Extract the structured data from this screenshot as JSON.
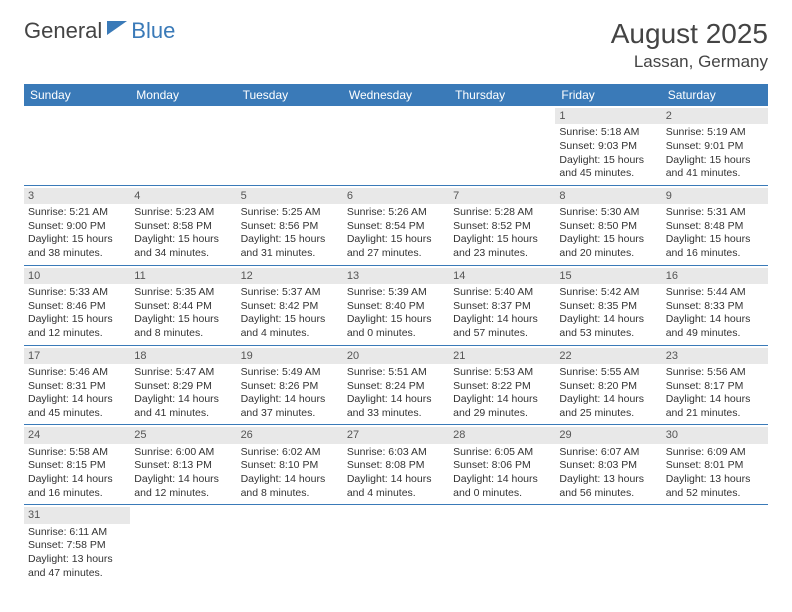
{
  "logo": {
    "part1": "General",
    "part2": "Blue"
  },
  "title": "August 2025",
  "location": "Lassan, Germany",
  "colors": {
    "header_bg": "#3a7ab8",
    "header_text": "#ffffff",
    "daynum_bg": "#e8e8e8",
    "body_text": "#333333",
    "border": "#3a7ab8"
  },
  "day_names": [
    "Sunday",
    "Monday",
    "Tuesday",
    "Wednesday",
    "Thursday",
    "Friday",
    "Saturday"
  ],
  "weeks": [
    [
      null,
      null,
      null,
      null,
      null,
      {
        "n": "1",
        "sunrise": "5:18 AM",
        "sunset": "9:03 PM",
        "daylight": "15 hours and 45 minutes."
      },
      {
        "n": "2",
        "sunrise": "5:19 AM",
        "sunset": "9:01 PM",
        "daylight": "15 hours and 41 minutes."
      }
    ],
    [
      {
        "n": "3",
        "sunrise": "5:21 AM",
        "sunset": "9:00 PM",
        "daylight": "15 hours and 38 minutes."
      },
      {
        "n": "4",
        "sunrise": "5:23 AM",
        "sunset": "8:58 PM",
        "daylight": "15 hours and 34 minutes."
      },
      {
        "n": "5",
        "sunrise": "5:25 AM",
        "sunset": "8:56 PM",
        "daylight": "15 hours and 31 minutes."
      },
      {
        "n": "6",
        "sunrise": "5:26 AM",
        "sunset": "8:54 PM",
        "daylight": "15 hours and 27 minutes."
      },
      {
        "n": "7",
        "sunrise": "5:28 AM",
        "sunset": "8:52 PM",
        "daylight": "15 hours and 23 minutes."
      },
      {
        "n": "8",
        "sunrise": "5:30 AM",
        "sunset": "8:50 PM",
        "daylight": "15 hours and 20 minutes."
      },
      {
        "n": "9",
        "sunrise": "5:31 AM",
        "sunset": "8:48 PM",
        "daylight": "15 hours and 16 minutes."
      }
    ],
    [
      {
        "n": "10",
        "sunrise": "5:33 AM",
        "sunset": "8:46 PM",
        "daylight": "15 hours and 12 minutes."
      },
      {
        "n": "11",
        "sunrise": "5:35 AM",
        "sunset": "8:44 PM",
        "daylight": "15 hours and 8 minutes."
      },
      {
        "n": "12",
        "sunrise": "5:37 AM",
        "sunset": "8:42 PM",
        "daylight": "15 hours and 4 minutes."
      },
      {
        "n": "13",
        "sunrise": "5:39 AM",
        "sunset": "8:40 PM",
        "daylight": "15 hours and 0 minutes."
      },
      {
        "n": "14",
        "sunrise": "5:40 AM",
        "sunset": "8:37 PM",
        "daylight": "14 hours and 57 minutes."
      },
      {
        "n": "15",
        "sunrise": "5:42 AM",
        "sunset": "8:35 PM",
        "daylight": "14 hours and 53 minutes."
      },
      {
        "n": "16",
        "sunrise": "5:44 AM",
        "sunset": "8:33 PM",
        "daylight": "14 hours and 49 minutes."
      }
    ],
    [
      {
        "n": "17",
        "sunrise": "5:46 AM",
        "sunset": "8:31 PM",
        "daylight": "14 hours and 45 minutes."
      },
      {
        "n": "18",
        "sunrise": "5:47 AM",
        "sunset": "8:29 PM",
        "daylight": "14 hours and 41 minutes."
      },
      {
        "n": "19",
        "sunrise": "5:49 AM",
        "sunset": "8:26 PM",
        "daylight": "14 hours and 37 minutes."
      },
      {
        "n": "20",
        "sunrise": "5:51 AM",
        "sunset": "8:24 PM",
        "daylight": "14 hours and 33 minutes."
      },
      {
        "n": "21",
        "sunrise": "5:53 AM",
        "sunset": "8:22 PM",
        "daylight": "14 hours and 29 minutes."
      },
      {
        "n": "22",
        "sunrise": "5:55 AM",
        "sunset": "8:20 PM",
        "daylight": "14 hours and 25 minutes."
      },
      {
        "n": "23",
        "sunrise": "5:56 AM",
        "sunset": "8:17 PM",
        "daylight": "14 hours and 21 minutes."
      }
    ],
    [
      {
        "n": "24",
        "sunrise": "5:58 AM",
        "sunset": "8:15 PM",
        "daylight": "14 hours and 16 minutes."
      },
      {
        "n": "25",
        "sunrise": "6:00 AM",
        "sunset": "8:13 PM",
        "daylight": "14 hours and 12 minutes."
      },
      {
        "n": "26",
        "sunrise": "6:02 AM",
        "sunset": "8:10 PM",
        "daylight": "14 hours and 8 minutes."
      },
      {
        "n": "27",
        "sunrise": "6:03 AM",
        "sunset": "8:08 PM",
        "daylight": "14 hours and 4 minutes."
      },
      {
        "n": "28",
        "sunrise": "6:05 AM",
        "sunset": "8:06 PM",
        "daylight": "14 hours and 0 minutes."
      },
      {
        "n": "29",
        "sunrise": "6:07 AM",
        "sunset": "8:03 PM",
        "daylight": "13 hours and 56 minutes."
      },
      {
        "n": "30",
        "sunrise": "6:09 AM",
        "sunset": "8:01 PM",
        "daylight": "13 hours and 52 minutes."
      }
    ],
    [
      {
        "n": "31",
        "sunrise": "6:11 AM",
        "sunset": "7:58 PM",
        "daylight": "13 hours and 47 minutes."
      },
      null,
      null,
      null,
      null,
      null,
      null
    ]
  ],
  "labels": {
    "sunrise": "Sunrise:",
    "sunset": "Sunset:",
    "daylight": "Daylight:"
  }
}
